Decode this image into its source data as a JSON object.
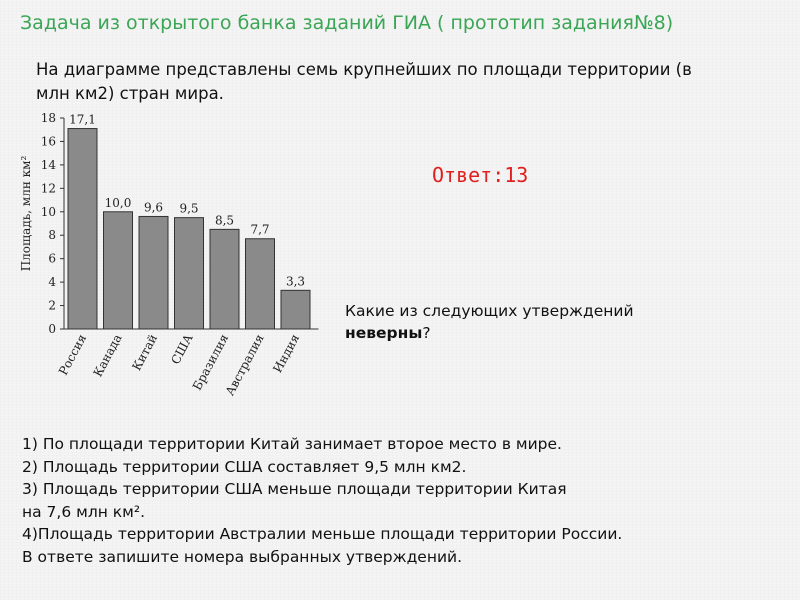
{
  "title": "Задача из открытого банка заданий ГИА ( прототип задания№8)",
  "intro": "На диаграмме представлены семь крупнейших по площади территории (в млн км2) стран мира.",
  "answer": "Ответ:13",
  "question": {
    "prefix": "Какие из следующих утверждений ",
    "bold": "неверны",
    "suffix": "?"
  },
  "statements": [
    "1) По площади территории Китай занимает второе место в мире.",
    "2) Площадь территории США составляет 9,5 млн км2.",
    "3) Площадь территории США меньше площади территории Китая",
    "на 7,6 млн км².",
    "4)Площадь территории Австралии меньше площади территории России.",
    "В ответе запишите номера выбранных утверждений."
  ],
  "colors": {
    "title": "#3aa655",
    "answer": "#e02020",
    "bar_fill": "#8a8a8a",
    "bar_stroke": "#333333"
  },
  "chart_data": {
    "type": "bar",
    "categories": [
      "Россия",
      "Канада",
      "Китай",
      "США",
      "Бразилия",
      "Австралия",
      "Индия"
    ],
    "values": [
      17.1,
      10.0,
      9.6,
      9.5,
      8.5,
      7.7,
      3.3
    ],
    "data_labels": [
      "17,1",
      "10,0",
      "9,6",
      "9,5",
      "8,5",
      "7,7",
      "3,3"
    ],
    "ylabel": "Площадь, млн км²",
    "yticks": [
      0,
      2,
      4,
      6,
      8,
      10,
      12,
      14,
      16,
      18
    ],
    "ylim": [
      0,
      18
    ],
    "grid": false,
    "legend": "none"
  }
}
